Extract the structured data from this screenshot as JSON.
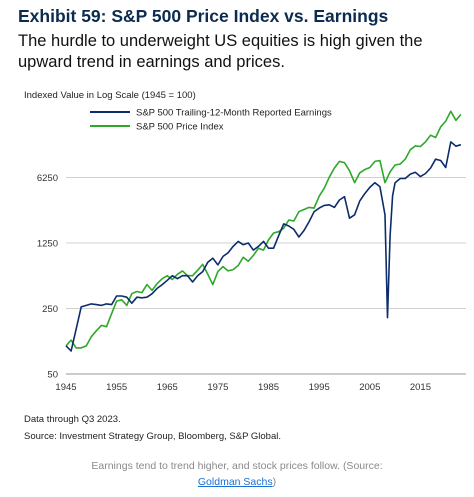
{
  "header": {
    "title": "Exhibit 59: S&P 500 Price Index vs. Earnings",
    "subtitle": "The hurdle to underweight US equities is high given the upward trend in earnings and prices."
  },
  "chart_note": "Indexed Value in Log Scale (1945 = 100)",
  "footer": {
    "data_through": "Data through Q3 2023.",
    "source": "Source: Investment Strategy Group, Bloomberg, S&P Global."
  },
  "caption": {
    "text": "Earnings tend to trend higher, and stock prices follow. (Source:",
    "link": "Goldman Sachs",
    "suffix": ")"
  },
  "colors": {
    "earnings": "#0d2c6b",
    "price": "#2fa82a",
    "grid": "#d0d0d0"
  },
  "chart_data": {
    "type": "line",
    "title": "",
    "ylabel": "Indexed Value in Log Scale (1945 = 100)",
    "yscale": "log",
    "ylim": [
      50,
      40000
    ],
    "xlim": [
      1945,
      2024
    ],
    "x_ticks": [
      1945,
      1955,
      1965,
      1975,
      1985,
      1995,
      2005,
      2015
    ],
    "y_ticks": [
      50,
      250,
      1250,
      6250
    ],
    "grid": "horizontal",
    "legend_position": "top-left",
    "series": [
      {
        "name": "S&P 500 Trailing-12-Month Reported Earnings",
        "x": [
          1945,
          1946,
          1947,
          1948,
          1949,
          1950,
          1951,
          1952,
          1953,
          1954,
          1955,
          1956,
          1957,
          1958,
          1959,
          1960,
          1961,
          1962,
          1963,
          1964,
          1965,
          1966,
          1967,
          1968,
          1969,
          1970,
          1971,
          1972,
          1973,
          1974,
          1975,
          1976,
          1977,
          1978,
          1979,
          1980,
          1981,
          1982,
          1983,
          1984,
          1985,
          1986,
          1987,
          1988,
          1989,
          1990,
          1991,
          1992,
          1993,
          1994,
          1995,
          1996,
          1997,
          1998,
          1999,
          2000,
          2001,
          2002,
          2003,
          2004,
          2005,
          2006,
          2007,
          2008,
          2008.5,
          2009,
          2009.5,
          2010,
          2011,
          2012,
          2013,
          2014,
          2015,
          2016,
          2017,
          2018,
          2019,
          2020,
          2021,
          2022,
          2023
        ],
        "values": [
          100,
          88,
          150,
          260,
          270,
          280,
          275,
          270,
          280,
          275,
          340,
          340,
          330,
          285,
          330,
          325,
          330,
          360,
          410,
          450,
          500,
          560,
          520,
          560,
          560,
          480,
          560,
          620,
          780,
          860,
          730,
          900,
          980,
          1150,
          1300,
          1200,
          1250,
          1050,
          1150,
          1300,
          1100,
          1100,
          1500,
          2000,
          1900,
          1750,
          1450,
          1700,
          2100,
          2700,
          2950,
          3150,
          3200,
          3000,
          3600,
          3900,
          2300,
          2500,
          3500,
          4200,
          4900,
          5500,
          5000,
          2500,
          200,
          1500,
          4000,
          5500,
          6100,
          6100,
          6800,
          7100,
          6400,
          6900,
          7900,
          9800,
          9500,
          8000,
          15000,
          13500,
          14000
        ]
      },
      {
        "name": "S&P 500 Price Index",
        "x": [
          1945,
          1946,
          1947,
          1948,
          1949,
          1950,
          1951,
          1952,
          1953,
          1954,
          1955,
          1956,
          1957,
          1958,
          1959,
          1960,
          1961,
          1962,
          1963,
          1964,
          1965,
          1966,
          1967,
          1968,
          1969,
          1970,
          1971,
          1972,
          1973,
          1974,
          1975,
          1976,
          1977,
          1978,
          1979,
          1980,
          1981,
          1982,
          1983,
          1984,
          1985,
          1986,
          1987,
          1988,
          1989,
          1990,
          1991,
          1992,
          1993,
          1994,
          1995,
          1996,
          1997,
          1998,
          1999,
          2000,
          2001,
          2002,
          2003,
          2004,
          2005,
          2006,
          2007,
          2008,
          2009,
          2010,
          2011,
          2012,
          2013,
          2014,
          2015,
          2016,
          2017,
          2018,
          2019,
          2020,
          2021,
          2022,
          2023
        ],
        "values": [
          100,
          115,
          95,
          95,
          100,
          125,
          145,
          165,
          160,
          220,
          300,
          310,
          270,
          360,
          380,
          370,
          450,
          390,
          460,
          520,
          560,
          510,
          580,
          630,
          560,
          560,
          640,
          740,
          580,
          450,
          620,
          700,
          630,
          650,
          720,
          880,
          800,
          920,
          1100,
          1050,
          1350,
          1600,
          1650,
          1800,
          2200,
          2150,
          2700,
          2850,
          3000,
          2950,
          3950,
          4800,
          6300,
          7900,
          9300,
          9000,
          7400,
          5500,
          7000,
          7600,
          8000,
          9300,
          9500,
          5500,
          7200,
          8500,
          8700,
          9800,
          12400,
          13600,
          13400,
          15000,
          17700,
          16700,
          21700,
          25000,
          31800,
          25500,
          29500
        ]
      }
    ]
  }
}
